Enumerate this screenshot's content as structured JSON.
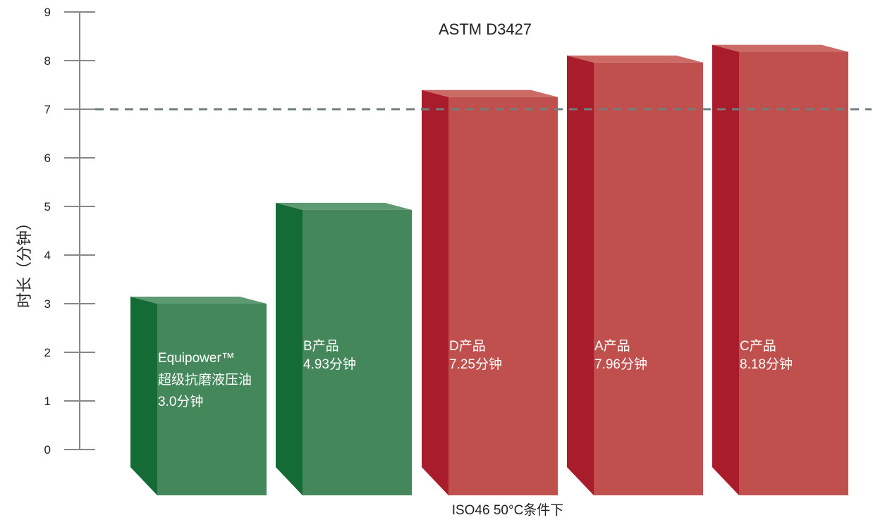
{
  "chart_data": {
    "type": "bar",
    "title": "",
    "subtitle": "ASTM D3427",
    "ylabel": "时长（分钟）",
    "xlabel": "ISO46 50°C条件下",
    "ylim": [
      0,
      9
    ],
    "yticks": [
      0,
      1,
      2,
      3,
      4,
      5,
      6,
      7,
      8,
      9
    ],
    "reference_line": {
      "value": 7,
      "style": "dashed"
    },
    "categories": [
      "Equipower™ 超级抗磨液压油",
      "B产品",
      "D产品",
      "A产品",
      "C产品"
    ],
    "values": [
      3.0,
      4.93,
      7.25,
      7.96,
      8.18
    ],
    "bars": [
      {
        "lines": [
          "Equipower™",
          "超级抗磨液压油",
          "3.0分钟"
        ],
        "value": 3.0,
        "color": "green"
      },
      {
        "lines": [
          "B产品",
          "4.93分钟"
        ],
        "value": 4.93,
        "color": "green"
      },
      {
        "lines": [
          "D产品",
          "7.25分钟"
        ],
        "value": 7.25,
        "color": "red"
      },
      {
        "lines": [
          "A产品",
          "7.96分钟"
        ],
        "value": 7.96,
        "color": "red"
      },
      {
        "lines": [
          "C产品",
          "8.18分钟"
        ],
        "value": 8.18,
        "color": "red"
      }
    ],
    "colors": {
      "green": {
        "front": "#43875a",
        "side": "#156b35",
        "top": "#5e9a71"
      },
      "red": {
        "front": "#c0504d",
        "side": "#a81c2c",
        "top": "#cc6a66"
      },
      "axis": "#888888",
      "refline": "#6f7f7c"
    }
  }
}
